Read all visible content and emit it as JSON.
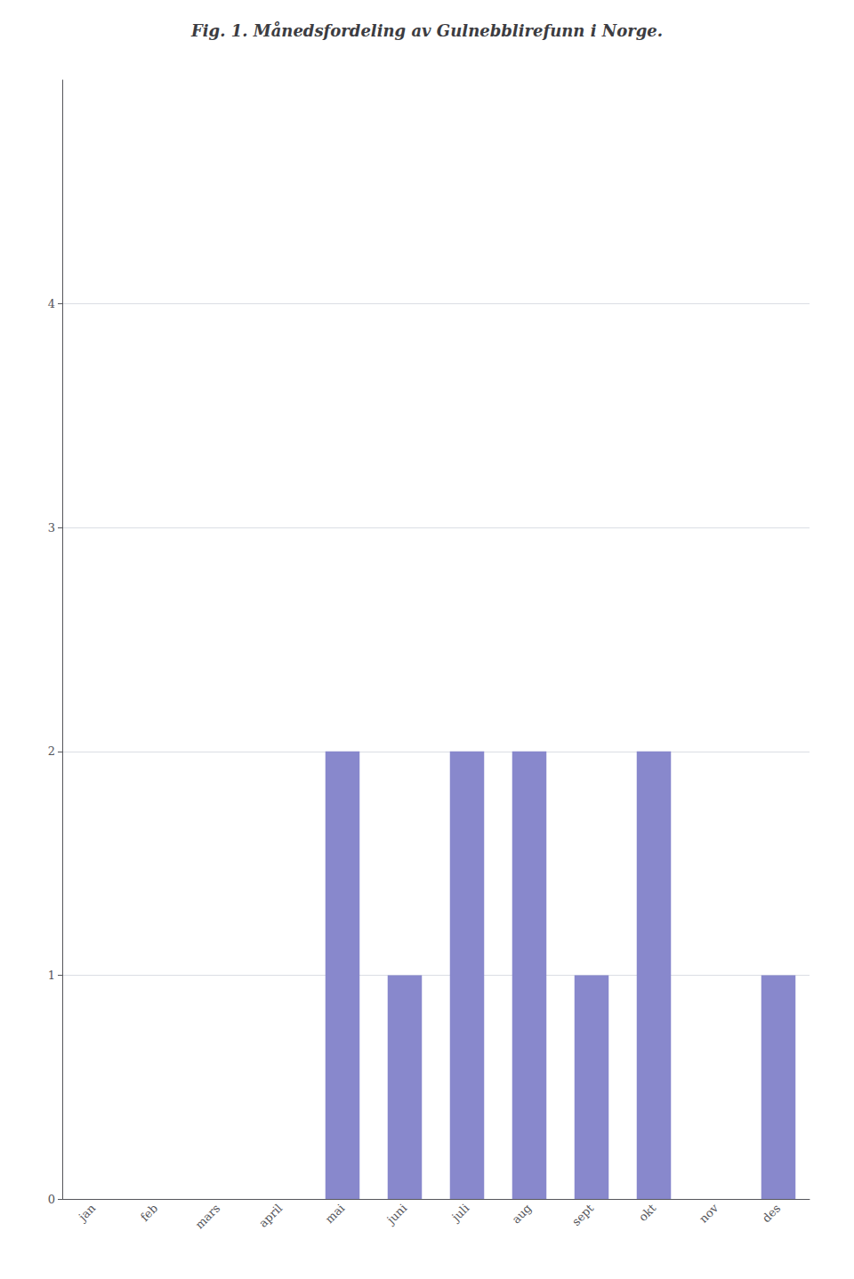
{
  "chart_data": {
    "type": "bar",
    "title": "Fig. 1. Månedsfordeling av Gulnebblirefunn i Norge.",
    "categories": [
      "jan",
      "feb",
      "mars",
      "april",
      "mai",
      "juni",
      "juli",
      "aug",
      "sept",
      "okt",
      "nov",
      "des"
    ],
    "values": [
      0,
      0,
      0,
      0,
      2,
      1,
      2,
      2,
      1,
      2,
      0,
      1
    ],
    "color": "#8888cc",
    "ylim": [
      0,
      5
    ],
    "yticks": [
      0,
      1,
      2,
      3,
      4
    ],
    "grid": true
  }
}
